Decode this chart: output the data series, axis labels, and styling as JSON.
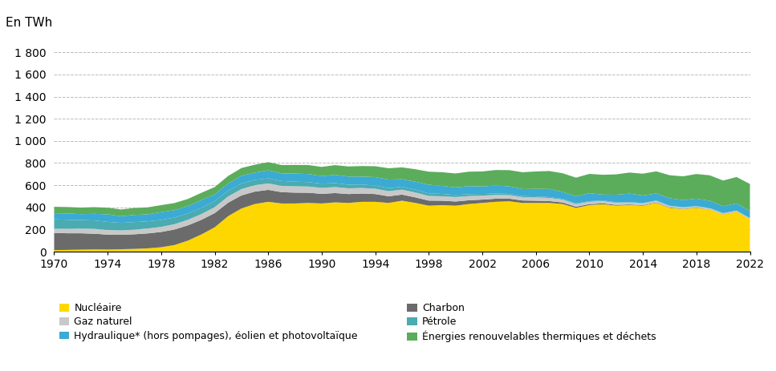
{
  "years": [
    1970,
    1971,
    1972,
    1973,
    1974,
    1975,
    1976,
    1977,
    1978,
    1979,
    1980,
    1981,
    1982,
    1983,
    1984,
    1985,
    1986,
    1987,
    1988,
    1989,
    1990,
    1991,
    1992,
    1993,
    1994,
    1995,
    1996,
    1997,
    1998,
    1999,
    2000,
    2001,
    2002,
    2003,
    2004,
    2005,
    2006,
    2007,
    2008,
    2009,
    2010,
    2011,
    2012,
    2013,
    2014,
    2015,
    2016,
    2017,
    2018,
    2019,
    2020,
    2021,
    2022
  ],
  "nucleaire": [
    14,
    16,
    18,
    20,
    19,
    22,
    25,
    30,
    40,
    60,
    100,
    155,
    220,
    320,
    390,
    430,
    450,
    435,
    435,
    440,
    435,
    445,
    440,
    450,
    450,
    440,
    460,
    440,
    415,
    420,
    415,
    430,
    440,
    450,
    455,
    440,
    440,
    440,
    430,
    395,
    420,
    428,
    415,
    420,
    415,
    440,
    395,
    385,
    395,
    380,
    335,
    360,
    295
  ],
  "charbon": [
    155,
    150,
    148,
    142,
    135,
    130,
    132,
    135,
    138,
    140,
    138,
    132,
    128,
    122,
    118,
    112,
    108,
    102,
    98,
    92,
    87,
    84,
    80,
    75,
    70,
    60,
    55,
    50,
    46,
    40,
    38,
    34,
    30,
    28,
    24,
    22,
    20,
    17,
    14,
    11,
    9,
    8,
    7,
    6,
    5,
    5,
    4,
    3,
    3,
    2,
    2,
    2,
    1
  ],
  "gaz_naturel": [
    38,
    40,
    42,
    44,
    42,
    40,
    42,
    44,
    46,
    48,
    50,
    52,
    54,
    56,
    57,
    58,
    58,
    57,
    57,
    56,
    54,
    54,
    52,
    50,
    48,
    46,
    45,
    44,
    42,
    40,
    40,
    38,
    36,
    34,
    32,
    30,
    30,
    28,
    26,
    23,
    22,
    21,
    20,
    18,
    16,
    14,
    13,
    12,
    11,
    10,
    9,
    8,
    6
  ],
  "petrole": [
    85,
    82,
    78,
    76,
    73,
    68,
    68,
    65,
    63,
    60,
    58,
    56,
    54,
    52,
    50,
    48,
    46,
    44,
    42,
    40,
    38,
    36,
    33,
    31,
    29,
    27,
    26,
    25,
    23,
    21,
    19,
    17,
    15,
    13,
    11,
    10,
    9,
    8,
    7,
    6,
    5,
    5,
    4,
    4,
    3,
    3,
    3,
    2,
    2,
    2,
    2,
    1,
    1
  ],
  "hydraulique": [
    55,
    57,
    53,
    60,
    68,
    60,
    65,
    63,
    70,
    67,
    65,
    70,
    60,
    65,
    70,
    65,
    72,
    68,
    73,
    73,
    68,
    75,
    73,
    72,
    76,
    78,
    68,
    73,
    78,
    73,
    68,
    73,
    68,
    72,
    68,
    63,
    68,
    73,
    63,
    65,
    72,
    53,
    68,
    76,
    68,
    63,
    68,
    63,
    68,
    65,
    62,
    65,
    63
  ],
  "enr_thermiques": [
    58,
    58,
    59,
    60,
    60,
    61,
    62,
    63,
    63,
    64,
    65,
    66,
    67,
    68,
    70,
    72,
    74,
    76,
    78,
    81,
    83,
    87,
    91,
    95,
    98,
    102,
    107,
    112,
    118,
    123,
    126,
    130,
    135,
    140,
    146,
    152,
    157,
    162,
    168,
    168,
    174,
    179,
    184,
    190,
    197,
    200,
    207,
    215,
    222,
    230,
    232,
    238,
    245
  ],
  "colors": {
    "nucleaire": "#FFD700",
    "charbon": "#6B6B6B",
    "gaz_naturel": "#C8C8C8",
    "petrole": "#4AABB0",
    "hydraulique": "#3BAAD4",
    "enr_thermiques": "#5BAD5B"
  },
  "legend": [
    {
      "label": "Nucléaire",
      "color": "#FFD700"
    },
    {
      "label": "Charbon",
      "color": "#6B6B6B"
    },
    {
      "label": "Gaz naturel",
      "color": "#C8C8C8"
    },
    {
      "label": "Pétrole",
      "color": "#4AABB0"
    },
    {
      "label": "Hydraulique* (hors pompages), éolien et photovoltaïque",
      "color": "#3BAAD4"
    },
    {
      "label": "Énergies renouvelables thermiques et déchets",
      "color": "#5BAD5B"
    }
  ],
  "top_label": "En TWh",
  "ylim": [
    0,
    1900
  ],
  "yticks": [
    0,
    200,
    400,
    600,
    800,
    1000,
    1200,
    1400,
    1600,
    1800
  ],
  "ytick_labels": [
    "0",
    "200",
    "400",
    "600",
    "800",
    "1 000",
    "1 200",
    "1 400",
    "1 600",
    "1 800"
  ],
  "xticks": [
    1970,
    1974,
    1978,
    1982,
    1986,
    1990,
    1994,
    1998,
    2002,
    2006,
    2010,
    2014,
    2018,
    2022
  ],
  "background_color": "#ffffff"
}
